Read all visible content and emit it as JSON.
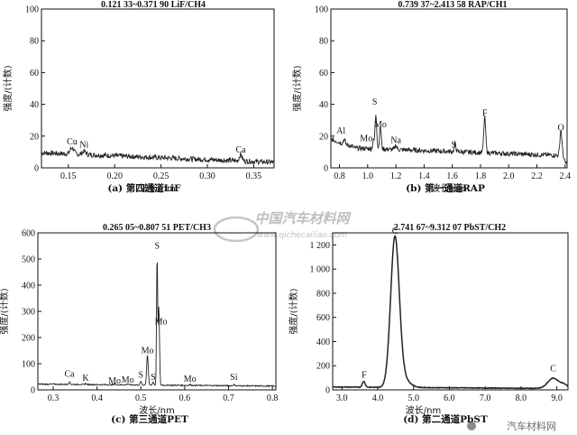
{
  "watermark": {
    "main": "中国汽车材料网",
    "sub": "www.qichecailiao.com",
    "corner": "汽车材料网"
  },
  "chart_data": [
    {
      "type": "line",
      "caption": "(a) 第四通道LiF",
      "header": "0.121 33~0.371 90  LiF/CH4",
      "xlabel": "波长/nm",
      "ylabel": "强度/(计数)",
      "xlim": [
        0.121,
        0.372
      ],
      "ylim": [
        0,
        100
      ],
      "xticks": [
        0.15,
        0.2,
        0.25,
        0.3,
        0.35
      ],
      "xtick_labels": [
        "0.15",
        "0.20",
        "0.25",
        "0.30",
        "0.35"
      ],
      "yticks": [
        0,
        20,
        40,
        60,
        80,
        100
      ],
      "ytick_labels": [
        "0",
        "20",
        "40",
        "60",
        "80",
        "100"
      ],
      "series": [
        {
          "x": [
            0.121,
            0.14,
            0.155,
            0.17,
            0.2,
            0.25,
            0.3,
            0.336,
            0.372
          ],
          "y": [
            10,
            9.5,
            12,
            10,
            8,
            6,
            4.5,
            7,
            2
          ]
        }
      ],
      "annotations": [
        {
          "text": "Cu",
          "x": 0.154,
          "y": 13
        },
        {
          "text": "Ni",
          "x": 0.167,
          "y": 11
        },
        {
          "text": "Ca",
          "x": 0.336,
          "y": 8
        }
      ]
    },
    {
      "type": "line",
      "caption": "(b) 第一通道RAP",
      "header": "0.739 37~2.413 58  RAP/CH1",
      "xlabel": "波长/nm",
      "ylabel": "强度/(计数)",
      "xlim": [
        0.739,
        2.414
      ],
      "ylim": [
        0,
        100
      ],
      "xticks": [
        0.8,
        1.0,
        1.2,
        1.4,
        1.6,
        1.8,
        2.0,
        2.2,
        2.4
      ],
      "xtick_labels": [
        "0.8",
        "1.0",
        "1.2",
        "1.4",
        "1.6",
        "1.8",
        "2.0",
        "2.2",
        "2.4"
      ],
      "yticks": [
        0,
        20,
        40,
        60,
        80,
        100
      ],
      "ytick_labels": [
        "0",
        "20",
        "40",
        "60",
        "80",
        "100"
      ],
      "series": [
        {
          "x": [
            0.739,
            0.834,
            1.04,
            1.06,
            1.09,
            1.2,
            1.62,
            1.83,
            2.37,
            2.414
          ],
          "y": [
            17,
            12,
            18,
            38,
            27,
            12,
            10,
            30,
            20,
            3
          ]
        }
      ],
      "annotations": [
        {
          "text": "Al",
          "x": 0.81,
          "y": 20
        },
        {
          "text": "Mo",
          "x": 0.99,
          "y": 15
        },
        {
          "text": "S",
          "x": 1.05,
          "y": 38
        },
        {
          "text": "Mo",
          "x": 1.09,
          "y": 24
        },
        {
          "text": "Na",
          "x": 1.2,
          "y": 14
        },
        {
          "text": "S",
          "x": 1.61,
          "y": 11
        },
        {
          "text": "F",
          "x": 1.83,
          "y": 31
        },
        {
          "text": "O",
          "x": 2.37,
          "y": 22
        }
      ]
    },
    {
      "type": "line",
      "caption": "(c) 第三通道PET",
      "header": "0.265 05~0.807 51  PET/CH3",
      "xlabel": "波长/nm",
      "ylabel": "强度/(计数)",
      "xlim": [
        0.265,
        0.808
      ],
      "ylim": [
        0,
        600
      ],
      "xticks": [
        0.3,
        0.4,
        0.5,
        0.6,
        0.7,
        0.8
      ],
      "xtick_labels": [
        "0.3",
        "0.4",
        "0.5",
        "0.6",
        "0.7",
        "0.8"
      ],
      "yticks": [
        0,
        100,
        200,
        300,
        400,
        500,
        600
      ],
      "ytick_labels": [
        "0",
        "100",
        "200",
        "300",
        "400",
        "500",
        "600"
      ],
      "series": [
        {
          "x": [
            0.265,
            0.337,
            0.374,
            0.515,
            0.537,
            0.54,
            0.545,
            0.808
          ],
          "y": [
            25,
            30,
            22,
            140,
            520,
            340,
            60,
            15
          ]
        }
      ],
      "annotations": [
        {
          "text": "Ca",
          "x": 0.337,
          "y": 40
        },
        {
          "text": "K",
          "x": 0.374,
          "y": 24
        },
        {
          "text": "Mo",
          "x": 0.44,
          "y": 14
        },
        {
          "text": "Mo",
          "x": 0.47,
          "y": 18
        },
        {
          "text": "S",
          "x": 0.5,
          "y": 36
        },
        {
          "text": "Mo",
          "x": 0.515,
          "y": 130
        },
        {
          "text": "S",
          "x": 0.528,
          "y": 28
        },
        {
          "text": "S",
          "x": 0.537,
          "y": 530
        },
        {
          "text": "Mo",
          "x": 0.546,
          "y": 240
        },
        {
          "text": "Mo",
          "x": 0.612,
          "y": 20
        },
        {
          "text": "Si",
          "x": 0.712,
          "y": 28
        }
      ]
    },
    {
      "type": "line",
      "caption": "(d) 第二通道PbST",
      "header": "2.741 67~9.312 07  PbST/CH2",
      "xlabel": "波长/nm",
      "ylabel": "强度/(计数)",
      "xlim": [
        2.742,
        9.312
      ],
      "ylim": [
        0,
        1300
      ],
      "xticks": [
        3.0,
        4.0,
        5.0,
        6.0,
        7.0,
        8.0,
        9.0
      ],
      "xtick_labels": [
        "3.0",
        "4.0",
        "5.0",
        "6.0",
        "7.0",
        "8.0",
        "9.0"
      ],
      "yticks": [
        0,
        200,
        400,
        600,
        800,
        1000,
        1200
      ],
      "ytick_labels": [
        "0",
        "200",
        "400",
        "600",
        "800",
        "1 000",
        "1 200"
      ],
      "series": [
        {
          "x": [
            2.742,
            3.61,
            4.0,
            4.3,
            4.48,
            4.7,
            5.2,
            6.0,
            7.0,
            8.0,
            8.9,
            9.312
          ],
          "y": [
            30,
            70,
            40,
            300,
            1250,
            300,
            25,
            15,
            10,
            12,
            110,
            60
          ]
        }
      ],
      "annotations": [
        {
          "text": "F",
          "x": 3.62,
          "y": 80
        },
        {
          "text": "C",
          "x": 4.48,
          "y": 1270
        },
        {
          "text": "C",
          "x": 8.9,
          "y": 130
        }
      ]
    }
  ]
}
